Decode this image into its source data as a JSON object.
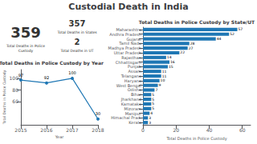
{
  "title": "Custodial Death in India",
  "chart_data": [
    {
      "type": "kpi",
      "categories": [
        "Total Deaths in Police\nCustody",
        "Total Deaths in States",
        "Total Deaths in UT"
      ],
      "values": [
        359,
        357,
        2
      ]
    },
    {
      "type": "line",
      "title": "Total Deaths in Police Custody by Year",
      "x": [
        2015,
        2016,
        2017,
        2018
      ],
      "values": [
        97,
        92,
        100,
        30
      ],
      "color": "#1f77b4",
      "xlabel": "Year",
      "ylabel": "Total Deaths in Police Custody",
      "xlim": [
        2015,
        2018
      ],
      "xticks": [
        2015,
        2016,
        2017,
        2018
      ],
      "ylim": [
        20,
        115
      ],
      "yticks": [
        60,
        80,
        100
      ],
      "data_labels": true,
      "grid": false
    },
    {
      "type": "bar",
      "orientation": "horizontal",
      "title": "Total Deaths in Police Custody by State/UT",
      "categories": [
        "Kerala",
        "Himachal Prad.",
        "Manipur",
        "Mizoram",
        "Karnataka",
        "Jharkhand",
        "Bihar",
        "Odisha",
        "West Bengal",
        "Haryana",
        "Telangana",
        "Assam",
        "Punjab",
        "Chhattisgarh",
        "Rajasthan",
        "Uttar Pradesh",
        "Madhya Pradesh",
        "Tamil Nadu",
        "Gujarat",
        "Andhra Pradesh",
        "Maharashtra"
      ],
      "values": [
        3,
        3,
        4,
        5,
        5,
        5,
        5,
        7,
        9,
        10,
        11,
        11,
        15,
        16,
        14,
        22,
        27,
        28,
        44,
        52,
        57
      ],
      "color": "#1f77b4",
      "xlabel": "Total Deaths in Police Custody",
      "xlim": [
        0,
        65
      ],
      "xticks": [
        0,
        20,
        40,
        60
      ],
      "data_labels": true,
      "grid": false
    }
  ]
}
